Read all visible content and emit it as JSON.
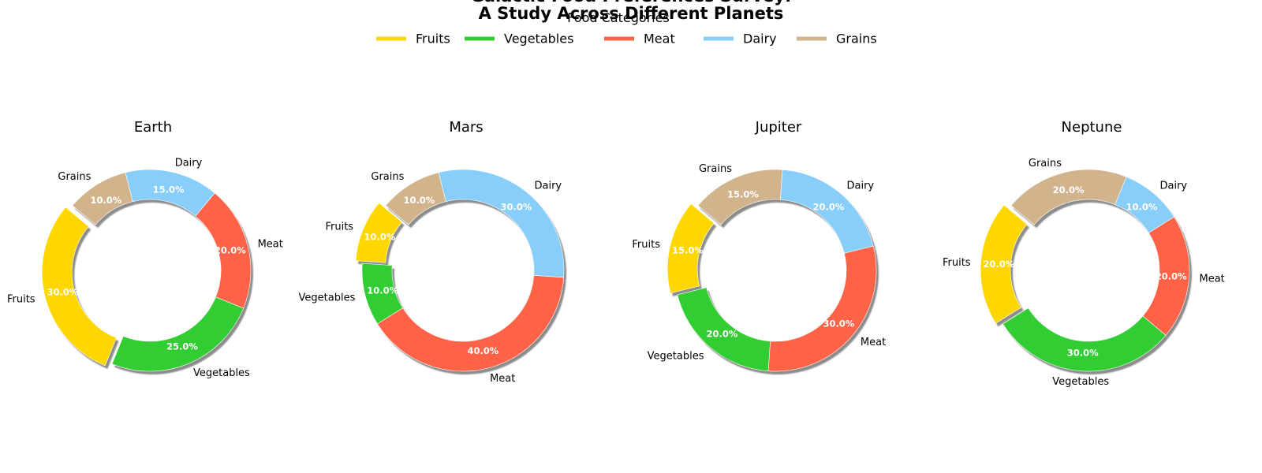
{
  "chart_data": {
    "type": "pie",
    "variant": "donut",
    "title": "Galactic Food Preferences Survey:\nA Study Across Different Planets",
    "legend": {
      "title": "Food Categories",
      "placement": "top-center",
      "entries": [
        "Fruits",
        "Vegetables",
        "Meat",
        "Dairy",
        "Grains"
      ]
    },
    "categories": [
      "Fruits",
      "Vegetables",
      "Meat",
      "Dairy",
      "Grains"
    ],
    "colors": {
      "Fruits": "#FFD700",
      "Vegetables": "#32CD32",
      "Meat": "#FF6347",
      "Dairy": "#87CEFA",
      "Grains": "#D2B48C"
    },
    "exploded": [
      "Fruits"
    ],
    "shadow": true,
    "charts": [
      {
        "title": "Earth",
        "values": [
          30,
          25,
          20,
          15,
          10
        ],
        "labels": [
          "30.0%",
          "25.0%",
          "20.0%",
          "15.0%",
          "10.0%"
        ]
      },
      {
        "title": "Mars",
        "values": [
          10,
          10,
          40,
          30,
          10
        ],
        "labels": [
          "10.0%",
          "10.0%",
          "40.0%",
          "30.0%",
          "10.0%"
        ]
      },
      {
        "title": "Jupiter",
        "values": [
          15,
          20,
          30,
          20,
          15
        ],
        "labels": [
          "15.0%",
          "20.0%",
          "30.0%",
          "20.0%",
          "15.0%"
        ]
      },
      {
        "title": "Neptune",
        "values": [
          20,
          30,
          20,
          10,
          20
        ],
        "labels": [
          "20.0%",
          "30.0%",
          "20.0%",
          "10.0%",
          "20.0%"
        ]
      }
    ]
  }
}
